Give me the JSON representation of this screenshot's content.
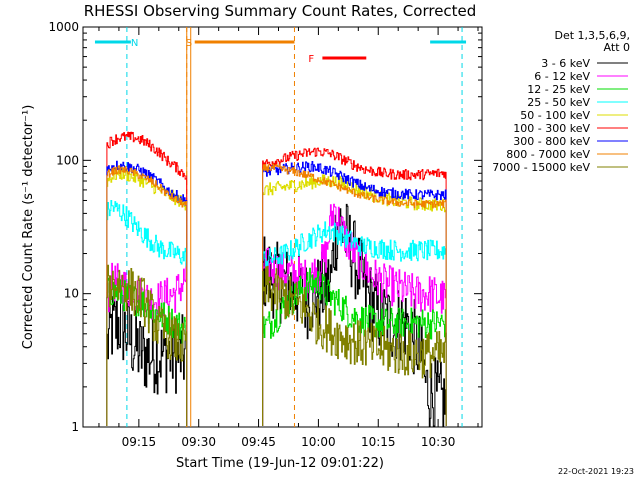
{
  "chart_data": {
    "type": "line",
    "title": "RHESSI Observing Summary Count Rates, Corrected",
    "xlabel": "Start Time (19-Jun-12 09:01:22)",
    "ylabel": "Corrected Count Rate (s⁻¹ detector⁻¹)",
    "yscale": "log",
    "ylim": [
      1,
      1000
    ],
    "xlim": [
      "09:01",
      "10:41"
    ],
    "x_ticks": [
      "09:15",
      "09:30",
      "09:45",
      "10:00",
      "10:15",
      "10:30"
    ],
    "y_ticks": [
      "1",
      "10",
      "100",
      "1000"
    ],
    "grid": false,
    "legend_position": "right",
    "legend_header": [
      "Det 1,3,5,6,9,",
      "Att 0"
    ],
    "timestamp": "22-Oct-2021 19:23",
    "flags": [
      {
        "label": "N",
        "color": "#00d8e8",
        "segments": [
          [
            "09:04",
            "09:13"
          ],
          [
            "10:28",
            "10:37"
          ]
        ],
        "boundaries": [
          "09:12",
          "10:36"
        ]
      },
      {
        "label": "S",
        "color": "#f08000",
        "segments": [
          [
            "09:29",
            "09:54"
          ]
        ],
        "boundaries": [
          "09:27",
          "09:54"
        ]
      },
      {
        "label": "F",
        "color": "#ff0000",
        "segments": [
          [
            "10:01",
            "10:12"
          ]
        ],
        "boundaries": []
      }
    ],
    "series": [
      {
        "name": "3 - 6 keV",
        "color": "#000000",
        "noise": 0.3,
        "x": [
          "09:07",
          "09:08",
          "09:10",
          "09:12",
          "09:14",
          "09:16",
          "09:18",
          "09:20",
          "09:22",
          "09:24",
          "09:26",
          "09:27",
          "09:46",
          "09:47",
          "09:50",
          "09:54",
          "09:57",
          "10:00",
          "10:03",
          "10:04",
          "10:05",
          "10:06",
          "10:08",
          "10:10",
          "10:12",
          "10:15",
          "10:18",
          "10:22",
          "10:25",
          "10:27",
          "10:30",
          "10:32"
        ],
        "values": [
          4,
          5.5,
          6,
          5,
          4,
          3.5,
          3.5,
          3.5,
          3.5,
          3.5,
          3.5,
          3.5,
          15,
          14,
          12,
          11,
          9,
          10,
          12,
          25,
          35,
          30,
          22,
          15,
          10,
          7,
          6,
          6,
          4,
          2,
          1.6,
          1.5
        ]
      },
      {
        "name": "6 - 12 keV",
        "color": "#ff00ff",
        "noise": 0.15,
        "x": [
          "09:07",
          "09:08",
          "09:10",
          "09:12",
          "09:14",
          "09:16",
          "09:18",
          "09:20",
          "09:22",
          "09:24",
          "09:26",
          "09:27",
          "09:46",
          "09:47",
          "09:50",
          "09:54",
          "09:57",
          "10:00",
          "10:02",
          "10:03",
          "10:04",
          "10:05",
          "10:07",
          "10:10",
          "10:13",
          "10:16",
          "10:20",
          "10:24",
          "10:28",
          "10:30",
          "10:32"
        ],
        "values": [
          9,
          12,
          12,
          11,
          10,
          9.5,
          9,
          9,
          9.5,
          10,
          12,
          14,
          17,
          16,
          15,
          14,
          13,
          15,
          20,
          35,
          45,
          35,
          25,
          18,
          14,
          12,
          11,
          10,
          10,
          9.5,
          9
        ]
      },
      {
        "name": "12 - 25 keV",
        "color": "#00dd00",
        "noise": 0.12,
        "x": [
          "09:07",
          "09:08",
          "09:10",
          "09:12",
          "09:14",
          "09:16",
          "09:18",
          "09:20",
          "09:22",
          "09:24",
          "09:26",
          "09:27",
          "09:46",
          "09:48",
          "09:50",
          "09:52",
          "09:54",
          "09:56",
          "09:58",
          "10:00",
          "10:02",
          "10:04",
          "10:06",
          "10:08",
          "10:10",
          "10:15",
          "10:20",
          "10:25",
          "10:30",
          "10:32"
        ],
        "values": [
          10,
          10.5,
          10,
          9.5,
          9,
          8.5,
          7.5,
          7,
          6.5,
          6,
          5.5,
          5.5,
          5.5,
          6,
          7,
          8.5,
          9.5,
          11,
          12,
          12,
          10,
          9,
          8,
          7,
          6.5,
          6,
          6,
          6,
          6,
          6
        ]
      },
      {
        "name": "25 - 50 keV",
        "color": "#00ffff",
        "noise": 0.08,
        "x": [
          "09:07",
          "09:08",
          "09:10",
          "09:12",
          "09:14",
          "09:16",
          "09:18",
          "09:20",
          "09:22",
          "09:24",
          "09:26",
          "09:27",
          "09:46",
          "09:47",
          "09:50",
          "09:53",
          "09:56",
          "09:58",
          "10:00",
          "10:02",
          "10:04",
          "10:06",
          "10:08",
          "10:10",
          "10:15",
          "10:20",
          "10:25",
          "10:30",
          "10:32"
        ],
        "values": [
          40,
          45,
          42,
          38,
          32,
          28,
          25,
          22,
          21,
          20,
          19,
          19,
          18,
          18,
          19,
          21,
          24,
          26,
          28,
          30,
          29,
          27,
          25,
          23,
          22,
          21,
          21,
          21,
          21
        ]
      },
      {
        "name": "50 - 100 keV",
        "color": "#dddd00",
        "noise": 0.05,
        "x": [
          "09:07",
          "09:08",
          "09:10",
          "09:12",
          "09:14",
          "09:16",
          "09:18",
          "09:20",
          "09:22",
          "09:24",
          "09:26",
          "09:27",
          "09:46",
          "09:47",
          "09:50",
          "09:54",
          "09:58",
          "10:00",
          "10:03",
          "10:06",
          "10:09",
          "10:12",
          "10:16",
          "10:20",
          "10:25",
          "10:30",
          "10:32"
        ],
        "values": [
          70,
          75,
          80,
          78,
          74,
          70,
          65,
          60,
          56,
          52,
          48,
          47,
          58,
          60,
          62,
          65,
          68,
          70,
          70,
          67,
          62,
          57,
          52,
          49,
          47,
          46,
          46
        ]
      },
      {
        "name": "100 - 300 keV",
        "color": "#ff0000",
        "noise": 0.04,
        "x": [
          "09:07",
          "09:08",
          "09:10",
          "09:12",
          "09:14",
          "09:16",
          "09:18",
          "09:20",
          "09:22",
          "09:24",
          "09:26",
          "09:27",
          "09:46",
          "09:47",
          "09:50",
          "09:54",
          "09:58",
          "10:00",
          "10:03",
          "10:06",
          "10:09",
          "10:12",
          "10:16",
          "10:20",
          "10:25",
          "10:30",
          "10:32"
        ],
        "values": [
          130,
          140,
          148,
          150,
          148,
          140,
          128,
          115,
          100,
          90,
          80,
          77,
          92,
          95,
          100,
          108,
          115,
          117,
          112,
          102,
          92,
          85,
          80,
          78,
          78,
          80,
          80
        ]
      },
      {
        "name": "300 - 800 keV",
        "color": "#0000ff",
        "noise": 0.04,
        "x": [
          "09:07",
          "09:08",
          "09:10",
          "09:12",
          "09:14",
          "09:16",
          "09:18",
          "09:20",
          "09:22",
          "09:24",
          "09:26",
          "09:27",
          "09:46",
          "09:47",
          "09:50",
          "09:54",
          "09:58",
          "10:00",
          "10:03",
          "10:06",
          "10:09",
          "10:12",
          "10:16",
          "10:20",
          "10:25",
          "10:30",
          "10:32"
        ],
        "values": [
          85,
          90,
          92,
          90,
          87,
          82,
          75,
          68,
          60,
          55,
          51,
          50,
          80,
          82,
          85,
          88,
          90,
          88,
          82,
          75,
          68,
          62,
          58,
          56,
          55,
          55,
          55
        ]
      },
      {
        "name": "800 - 7000 keV",
        "color": "#f08000",
        "noise": 0.03,
        "x": [
          "09:07",
          "09:08",
          "09:10",
          "09:12",
          "09:14",
          "09:16",
          "09:18",
          "09:20",
          "09:22",
          "09:24",
          "09:26",
          "09:27",
          "09:46",
          "09:47",
          "09:50",
          "09:54",
          "09:58",
          "10:00",
          "10:03",
          "10:06",
          "10:09",
          "10:12",
          "10:16",
          "10:20",
          "10:25",
          "10:30",
          "10:32"
        ],
        "values": [
          78,
          82,
          85,
          84,
          80,
          75,
          70,
          63,
          56,
          51,
          47,
          46,
          86,
          88,
          87,
          82,
          76,
          72,
          67,
          62,
          57,
          53,
          50,
          48,
          47,
          47,
          47
        ]
      },
      {
        "name": "7000 - 15000 keV",
        "color": "#808000",
        "noise": 0.18,
        "x": [
          "09:07",
          "09:08",
          "09:10",
          "09:12",
          "09:14",
          "09:16",
          "09:18",
          "09:20",
          "09:22",
          "09:24",
          "09:26",
          "09:27",
          "09:46",
          "09:47",
          "09:50",
          "09:53",
          "09:56",
          "09:58",
          "10:00",
          "10:02",
          "10:04",
          "10:06",
          "10:08",
          "10:10",
          "10:13",
          "10:16",
          "10:20",
          "10:25",
          "10:30",
          "10:32"
        ],
        "values": [
          11,
          12,
          12,
          11,
          10,
          9,
          7,
          5.5,
          5,
          4.5,
          4,
          4,
          10,
          11,
          10,
          9,
          8,
          7,
          6,
          5.5,
          5,
          4.8,
          4.5,
          4.2,
          4,
          3.8,
          3.6,
          3.5,
          3.5,
          3.5
        ]
      }
    ]
  }
}
